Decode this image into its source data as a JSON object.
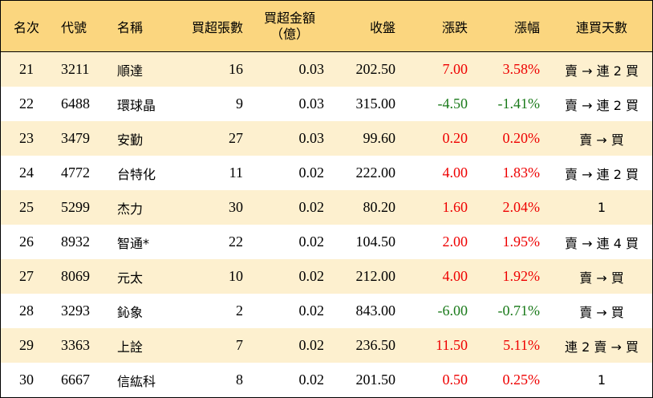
{
  "headers": {
    "rank": "名次",
    "code": "代號",
    "name": "名稱",
    "net_lots": "買超張數",
    "net_amount_line1": "買超金額",
    "net_amount_line2": "（億）",
    "close": "收盤",
    "change": "漲跌",
    "pct": "漲幅",
    "streak": "連買天數"
  },
  "rows": [
    {
      "rank": "21",
      "code": "3211",
      "name": "順達",
      "lots": "16",
      "amount": "0.03",
      "close": "202.50",
      "change": "7.00",
      "pct": "3.58%",
      "streak": "賣 → 連 2 買",
      "dir": "up"
    },
    {
      "rank": "22",
      "code": "6488",
      "name": "環球晶",
      "lots": "9",
      "amount": "0.03",
      "close": "315.00",
      "change": "-4.50",
      "pct": "-1.41%",
      "streak": "賣 → 連 2 買",
      "dir": "down"
    },
    {
      "rank": "23",
      "code": "3479",
      "name": "安勤",
      "lots": "27",
      "amount": "0.03",
      "close": "99.60",
      "change": "0.20",
      "pct": "0.20%",
      "streak": "賣 → 買",
      "dir": "up"
    },
    {
      "rank": "24",
      "code": "4772",
      "name": "台特化",
      "lots": "11",
      "amount": "0.02",
      "close": "222.00",
      "change": "4.00",
      "pct": "1.83%",
      "streak": "賣 → 連 2 買",
      "dir": "up"
    },
    {
      "rank": "25",
      "code": "5299",
      "name": "杰力",
      "lots": "30",
      "amount": "0.02",
      "close": "80.20",
      "change": "1.60",
      "pct": "2.04%",
      "streak": "1",
      "dir": "up"
    },
    {
      "rank": "26",
      "code": "8932",
      "name": "智通*",
      "lots": "22",
      "amount": "0.02",
      "close": "104.50",
      "change": "2.00",
      "pct": "1.95%",
      "streak": "賣 → 連 4 買",
      "dir": "up"
    },
    {
      "rank": "27",
      "code": "8069",
      "name": "元太",
      "lots": "10",
      "amount": "0.02",
      "close": "212.00",
      "change": "4.00",
      "pct": "1.92%",
      "streak": "賣 → 買",
      "dir": "up"
    },
    {
      "rank": "28",
      "code": "3293",
      "name": "鈊象",
      "lots": "2",
      "amount": "0.02",
      "close": "843.00",
      "change": "-6.00",
      "pct": "-0.71%",
      "streak": "賣 → 買",
      "dir": "down"
    },
    {
      "rank": "29",
      "code": "3363",
      "name": "上詮",
      "lots": "7",
      "amount": "0.02",
      "close": "236.50",
      "change": "11.50",
      "pct": "5.11%",
      "streak": "連 2 賣 → 買",
      "dir": "up"
    },
    {
      "rank": "30",
      "code": "6667",
      "name": "信紘科",
      "lots": "8",
      "amount": "0.02",
      "close": "201.50",
      "change": "0.50",
      "pct": "0.25%",
      "streak": "1",
      "dir": "up"
    }
  ],
  "colors": {
    "header_bg": "#fbd67f",
    "odd_row_bg": "#fdf0cf",
    "even_row_bg": "#ffffff",
    "up": "#ee0000",
    "down": "#1a7a1a"
  }
}
